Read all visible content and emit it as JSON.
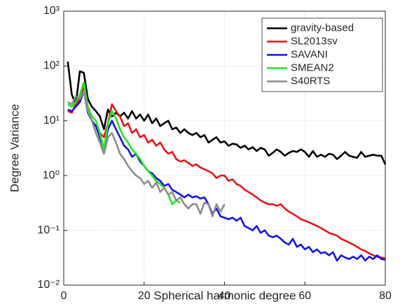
{
  "chart_data": {
    "type": "line",
    "xlabel": "Spherical harmonic degree",
    "ylabel": "Degree Variance",
    "log_y": true,
    "grid": true,
    "legend": "top-right",
    "xlim": [
      0,
      80
    ],
    "xticks": [
      0,
      20,
      40,
      60,
      80
    ],
    "ylim": [
      0.01,
      1000
    ],
    "yticks": [
      {
        "value": 0.01,
        "label": "10⁻²"
      },
      {
        "value": 0.1,
        "label": "10⁻¹"
      },
      {
        "value": 1,
        "label": "10⁰"
      },
      {
        "value": 10,
        "label": "10¹"
      },
      {
        "value": 100,
        "label": "10²"
      },
      {
        "value": 1000,
        "label": "10³"
      }
    ],
    "x": [
      1,
      2,
      3,
      4,
      5,
      6,
      7,
      8,
      9,
      10,
      11,
      12,
      13,
      14,
      15,
      16,
      17,
      18,
      19,
      20,
      21,
      22,
      23,
      24,
      25,
      26,
      27,
      28,
      29,
      30,
      31,
      32,
      33,
      34,
      35,
      36,
      37,
      38,
      39,
      40,
      41,
      42,
      43,
      44,
      45,
      46,
      47,
      48,
      49,
      50,
      51,
      52,
      53,
      54,
      55,
      56,
      57,
      58,
      59,
      60,
      61,
      62,
      63,
      64,
      65,
      66,
      67,
      68,
      69,
      70,
      71,
      72,
      73,
      74,
      75,
      76,
      77,
      78,
      79,
      80
    ],
    "series": [
      {
        "name": "gravity-based",
        "color": "#000000",
        "values": [
          120,
          30,
          20,
          80,
          75,
          25,
          18,
          15,
          12,
          7,
          16,
          12,
          14,
          12,
          14,
          11,
          15,
          11,
          13,
          10,
          13,
          9,
          11,
          8,
          9,
          10,
          7,
          7.5,
          6,
          7,
          6,
          5.5,
          6,
          5,
          5.5,
          4,
          4.5,
          5,
          4,
          4.2,
          3.5,
          3.8,
          3.7,
          3.2,
          3.5,
          3,
          3.3,
          2.8,
          3.2,
          3,
          2.3,
          2.6,
          3,
          2.7,
          2.3,
          2.6,
          2.8,
          2.7,
          3,
          2.7,
          2.2,
          2.8,
          2.2,
          2.4,
          2.2,
          2.5,
          2.4,
          2,
          2.3,
          2.7,
          2.3,
          2.2,
          2.1,
          2.7,
          2.2,
          2.3,
          2.4,
          2.3,
          2.3,
          1.6
        ]
      },
      {
        "name": "SL2013sv",
        "color": "#e8141a",
        "values": [
          15,
          14,
          20,
          25,
          40,
          15,
          10,
          8,
          6,
          5,
          9,
          20,
          15,
          12,
          8,
          9,
          6,
          7,
          5,
          5.5,
          4,
          4.5,
          3.5,
          4,
          3,
          2.5,
          2.7,
          2,
          1.8,
          1.9,
          1.7,
          1.5,
          1.6,
          1.4,
          1.3,
          1.2,
          1.1,
          0.9,
          1,
          1,
          0.8,
          0.85,
          0.7,
          0.65,
          0.55,
          0.5,
          0.45,
          0.4,
          0.35,
          0.32,
          0.3,
          0.3,
          0.28,
          0.3,
          0.25,
          0.22,
          0.2,
          0.18,
          0.16,
          0.15,
          0.14,
          0.13,
          0.12,
          0.11,
          0.1,
          0.09,
          0.085,
          0.08,
          0.07,
          0.065,
          0.06,
          0.055,
          0.05,
          0.045,
          0.042,
          0.038,
          0.035,
          0.033,
          0.032,
          0.031
        ]
      },
      {
        "name": "SAVANI",
        "color": "#1414e6",
        "values": [
          16,
          15,
          18,
          22,
          35,
          14,
          10,
          8,
          5,
          3,
          7,
          10,
          7,
          5,
          3.5,
          3,
          2.2,
          2.5,
          1.8,
          1.5,
          1.2,
          1.1,
          0.9,
          0.8,
          0.65,
          0.7,
          0.55,
          0.5,
          0.45,
          0.4,
          0.45,
          0.4,
          0.42,
          0.38,
          0.4,
          0.3,
          0.2,
          0.25,
          0.18,
          0.17,
          0.16,
          0.17,
          0.15,
          0.17,
          0.12,
          0.11,
          0.1,
          0.12,
          0.09,
          0.1,
          0.08,
          0.075,
          0.08,
          0.07,
          0.06,
          0.055,
          0.07,
          0.05,
          0.055,
          0.045,
          0.05,
          0.04,
          0.045,
          0.038,
          0.04,
          0.035,
          0.04,
          0.028,
          0.035,
          0.032,
          0.03,
          0.033,
          0.03,
          0.035,
          0.028,
          0.033,
          0.03,
          0.035,
          0.03,
          0.029
        ]
      },
      {
        "name": "SMEAN2",
        "color": "#22e622",
        "values": [
          20,
          18,
          22,
          30,
          50,
          18,
          12,
          10,
          6,
          3,
          9,
          15,
          11,
          7,
          5,
          4,
          3,
          2.5,
          2,
          1.5,
          1.2,
          1,
          0.8,
          0.7,
          0.6,
          0.45,
          0.3,
          0.35,
          0.32,
          null,
          null,
          null,
          null,
          null,
          null,
          null,
          null,
          null,
          null,
          null,
          null,
          null,
          null,
          null,
          null,
          null,
          null,
          null,
          null,
          null,
          null,
          null,
          null,
          null,
          null,
          null,
          null,
          null,
          null,
          null,
          null,
          null,
          null,
          null,
          null,
          null,
          null,
          null,
          null,
          null,
          null,
          null,
          null,
          null,
          null,
          null,
          null,
          null,
          null,
          null
        ]
      },
      {
        "name": "S40RTS",
        "color": "#8c8c8c",
        "values": [
          22,
          20,
          28,
          25,
          35,
          15,
          10,
          6,
          4,
          2.5,
          5,
          6,
          4,
          2.5,
          2,
          1.5,
          1.2,
          1,
          0.9,
          0.7,
          0.8,
          0.6,
          0.75,
          0.5,
          0.6,
          0.45,
          0.5,
          0.35,
          0.4,
          0.3,
          0.25,
          0.3,
          0.3,
          0.2,
          0.32,
          0.3,
          0.18,
          0.3,
          0.22,
          0.3,
          null,
          null,
          null,
          null,
          null,
          null,
          null,
          null,
          null,
          null,
          null,
          null,
          null,
          null,
          null,
          null,
          null,
          null,
          null,
          null,
          null,
          null,
          null,
          null,
          null,
          null,
          null,
          null,
          null,
          null,
          null,
          null,
          null,
          null,
          null,
          null,
          null,
          null,
          null,
          null
        ]
      }
    ]
  }
}
